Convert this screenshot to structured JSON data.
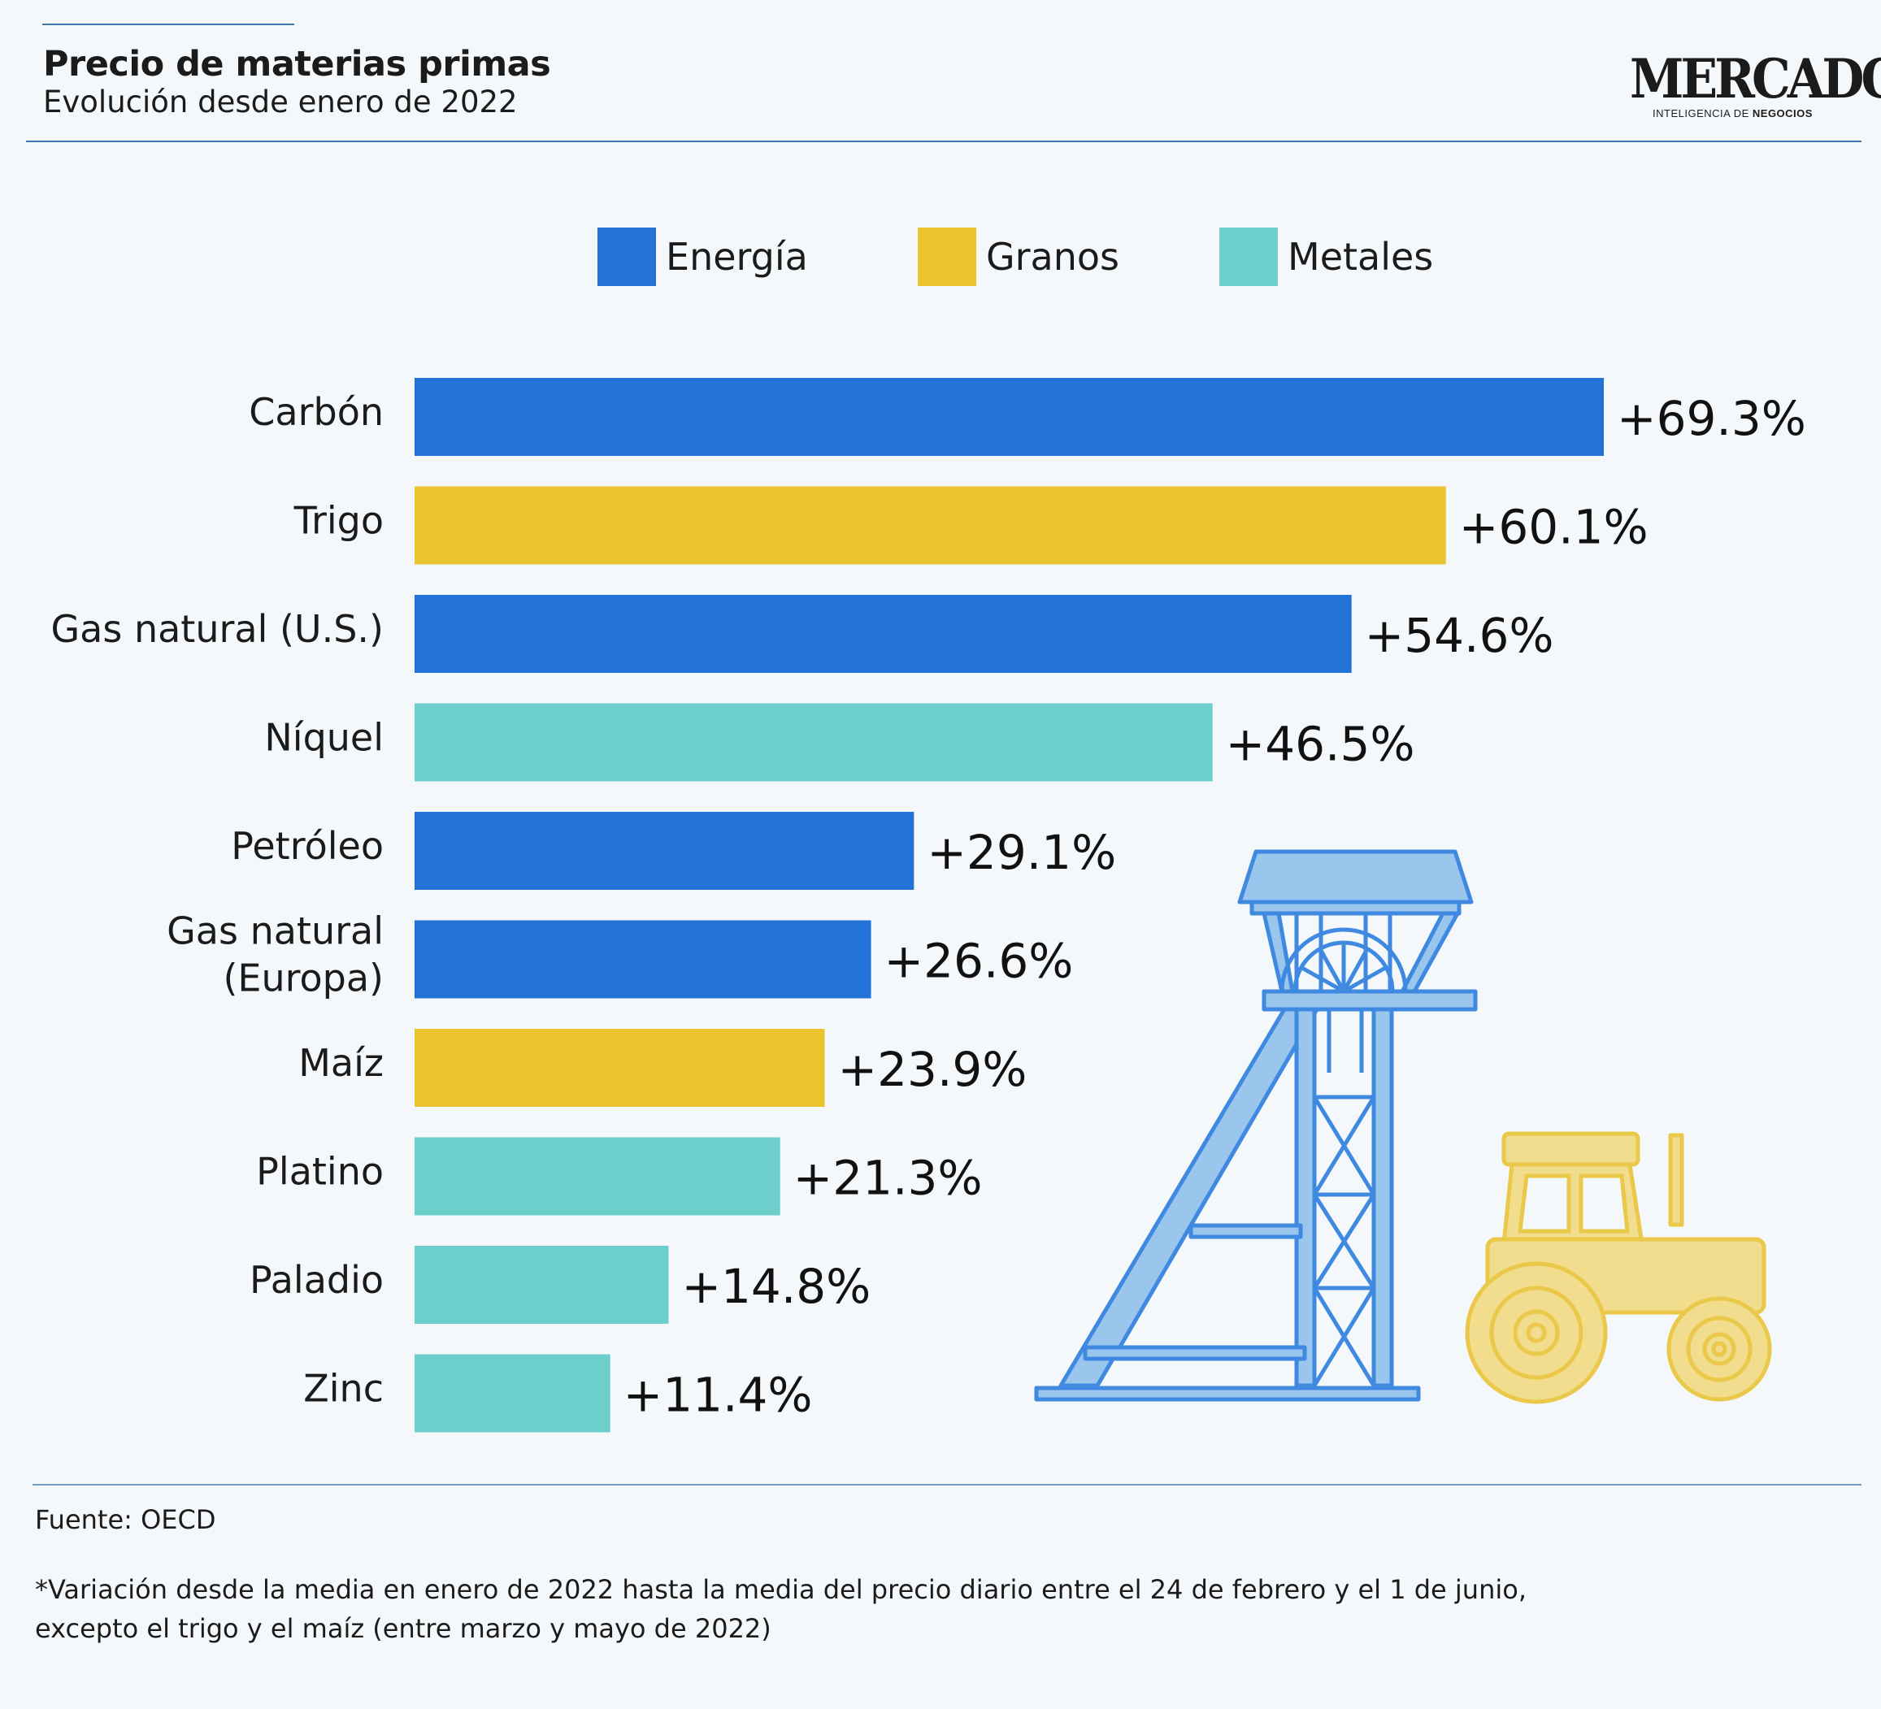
{
  "header": {
    "title": "Precio de materias primas",
    "subtitle": "Evolución desde enero de 2022",
    "logo": {
      "word": "MERCADO",
      "tag_prefix": "INTELIGENCIA DE ",
      "tag_bold": "NEGOCIOS"
    }
  },
  "legend": [
    {
      "label": "Energía",
      "color": "#2272d8"
    },
    {
      "label": "Granos",
      "color": "#eac52d"
    },
    {
      "label": "Metales",
      "color": "#6ccfcb"
    }
  ],
  "chart_data": {
    "type": "bar",
    "orientation": "horizontal",
    "categories": [
      "Carbón",
      "Trigo",
      "Gas natural (U.S.)",
      "Níquel",
      "Petróleo",
      "Gas natural (Europa)",
      "Maíz",
      "Platino",
      "Paladio",
      "Zinc"
    ],
    "category_lines": [
      [
        "Carbón"
      ],
      [
        "Trigo"
      ],
      [
        "Gas natural (U.S.)"
      ],
      [
        "Níquel"
      ],
      [
        "Petróleo"
      ],
      [
        "Gas natural",
        "(Europa)"
      ],
      [
        "Maíz"
      ],
      [
        "Platino"
      ],
      [
        "Paladio"
      ],
      [
        "Zinc"
      ]
    ],
    "values": [
      69.3,
      60.1,
      54.6,
      46.5,
      29.1,
      26.6,
      23.9,
      21.3,
      14.8,
      11.4
    ],
    "value_labels": [
      "+69.3%",
      "+60.1%",
      "+54.6%",
      "+46.5%",
      "+29.1%",
      "+26.6%",
      "+23.9%",
      "+21.3%",
      "+14.8%",
      "+11.4%"
    ],
    "groups": [
      "Energía",
      "Granos",
      "Energía",
      "Metales",
      "Energía",
      "Energía",
      "Granos",
      "Metales",
      "Metales",
      "Metales"
    ],
    "colors": {
      "Energía": "#2272d8",
      "Granos": "#eac52d",
      "Metales": "#6ccfcb"
    },
    "xlim": [
      0,
      69.3
    ],
    "legend_position": "top"
  },
  "footer": {
    "source": "Fuente: OECD",
    "note_line1": "*Variación desde la media en enero de 2022 hasta la media del precio diario entre el 24 de febrero y el 1 de junio,",
    "note_line2": "excepto el trigo y el maíz (entre marzo y mayo de 2022)"
  },
  "illustrations": [
    "mine-headframe-icon",
    "tractor-icon"
  ]
}
